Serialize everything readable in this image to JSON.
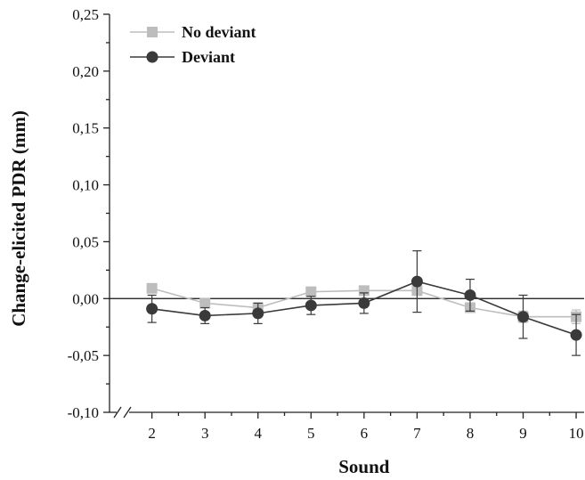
{
  "chart_data": {
    "type": "line",
    "xlabel": "Sound",
    "ylabel": "Change-elicited PDR (mm)",
    "x": [
      2,
      3,
      4,
      5,
      6,
      7,
      8,
      9,
      10
    ],
    "xlim": [
      1.2,
      10.15
    ],
    "ylim": [
      -0.1,
      0.25
    ],
    "x_ticks": [
      "2",
      "3",
      "4",
      "5",
      "6",
      "7",
      "8",
      "9",
      "10"
    ],
    "y_ticks": [
      "-0,10",
      "-0,05",
      "0,00",
      "0,05",
      "0,10",
      "0,15",
      "0,20",
      "0,25"
    ],
    "y_tick_values": [
      -0.1,
      -0.05,
      0.0,
      0.05,
      0.1,
      0.15,
      0.2,
      0.25
    ],
    "axis_break": true,
    "zero_line": true,
    "legend_position": "top-left",
    "series": [
      {
        "name": "No deviant",
        "color": "#bdbdbd",
        "marker": "square",
        "values": [
          0.009,
          -0.004,
          -0.008,
          0.006,
          0.007,
          0.007,
          -0.008,
          -0.016,
          -0.016
        ],
        "errors": [
          0.004,
          0.003,
          0.003,
          0.003,
          0.003,
          0.004,
          0.004,
          0.005,
          0.006
        ]
      },
      {
        "name": "Deviant",
        "color": "#3a3a3a",
        "marker": "circle",
        "values": [
          -0.009,
          -0.015,
          -0.013,
          -0.006,
          -0.004,
          0.015,
          0.003,
          -0.016,
          -0.032
        ],
        "errors": [
          0.012,
          0.007,
          0.009,
          0.008,
          0.009,
          0.027,
          0.014,
          0.019,
          0.018
        ]
      }
    ]
  }
}
